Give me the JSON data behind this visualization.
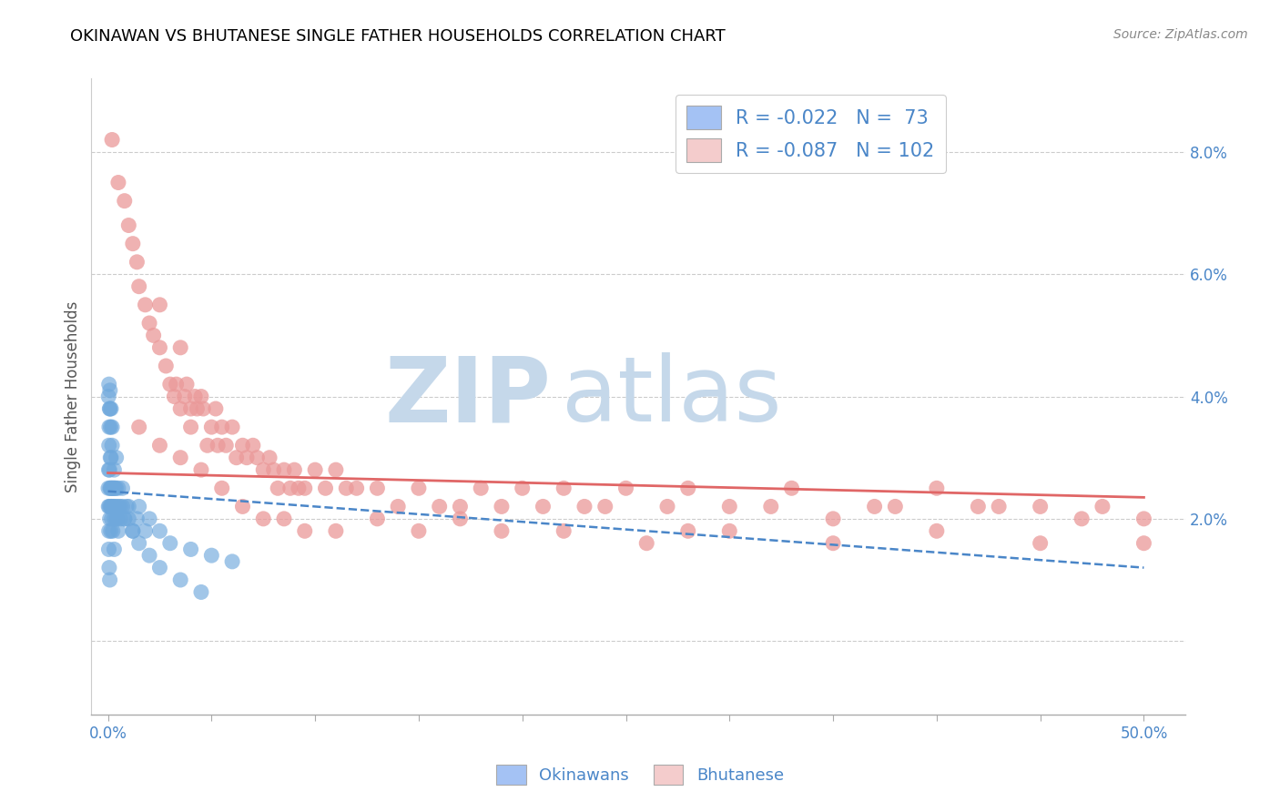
{
  "title": "OKINAWAN VS BHUTANESE SINGLE FATHER HOUSEHOLDS CORRELATION CHART",
  "source": "Source: ZipAtlas.com",
  "ylabel": "Single Father Households",
  "x_tick_positions": [
    0.0,
    0.05,
    0.1,
    0.15,
    0.2,
    0.25,
    0.3,
    0.35,
    0.4,
    0.45,
    0.5
  ],
  "x_tick_labels": [
    "0.0%",
    "",
    "",
    "",
    "",
    "",
    "",
    "",
    "",
    "",
    "50.0%"
  ],
  "y_ticks_right": [
    0.0,
    0.02,
    0.04,
    0.06,
    0.08
  ],
  "y_tick_labels_right": [
    "",
    "2.0%",
    "4.0%",
    "6.0%",
    "8.0%"
  ],
  "xlim": [
    -0.008,
    0.52
  ],
  "ylim": [
    -0.012,
    0.092
  ],
  "blue_color": "#6fa8dc",
  "pink_color": "#ea9999",
  "blue_fill": "#a4c2f4",
  "pink_fill": "#f4cccc",
  "trend_blue_color": "#4a86c8",
  "trend_pink_color": "#e06666",
  "watermark_zip_color": "#c5d8ea",
  "watermark_atlas_color": "#c5d8ea",
  "background_color": "#ffffff",
  "grid_color": "#cccccc",
  "title_color": "#000000",
  "label_color": "#4a86c8",
  "okinawan_x": [
    0.0002,
    0.0003,
    0.0004,
    0.0005,
    0.0005,
    0.0006,
    0.0007,
    0.0008,
    0.0009,
    0.001,
    0.001,
    0.0012,
    0.0012,
    0.0013,
    0.0014,
    0.0015,
    0.0016,
    0.0017,
    0.0018,
    0.002,
    0.002,
    0.0022,
    0.0023,
    0.0025,
    0.0026,
    0.003,
    0.003,
    0.0032,
    0.0035,
    0.004,
    0.004,
    0.0042,
    0.0045,
    0.005,
    0.005,
    0.006,
    0.007,
    0.008,
    0.009,
    0.01,
    0.012,
    0.014,
    0.015,
    0.018,
    0.02,
    0.025,
    0.03,
    0.04,
    0.05,
    0.06,
    0.0003,
    0.0005,
    0.0008,
    0.001,
    0.0013,
    0.0015,
    0.002,
    0.003,
    0.004,
    0.005,
    0.006,
    0.007,
    0.008,
    0.01,
    0.012,
    0.015,
    0.02,
    0.025,
    0.035,
    0.045,
    0.0004,
    0.0006,
    0.0009,
    0.003
  ],
  "okinawan_y": [
    0.025,
    0.022,
    0.028,
    0.032,
    0.018,
    0.035,
    0.022,
    0.028,
    0.02,
    0.038,
    0.025,
    0.03,
    0.022,
    0.025,
    0.018,
    0.03,
    0.022,
    0.025,
    0.02,
    0.035,
    0.022,
    0.025,
    0.018,
    0.025,
    0.022,
    0.025,
    0.02,
    0.022,
    0.025,
    0.025,
    0.02,
    0.022,
    0.02,
    0.022,
    0.018,
    0.02,
    0.022,
    0.02,
    0.022,
    0.02,
    0.018,
    0.02,
    0.022,
    0.018,
    0.02,
    0.018,
    0.016,
    0.015,
    0.014,
    0.013,
    0.04,
    0.042,
    0.038,
    0.041,
    0.035,
    0.038,
    0.032,
    0.028,
    0.03,
    0.025,
    0.022,
    0.025,
    0.02,
    0.022,
    0.018,
    0.016,
    0.014,
    0.012,
    0.01,
    0.008,
    0.015,
    0.012,
    0.01,
    0.015
  ],
  "bhutanese_x": [
    0.002,
    0.005,
    0.008,
    0.01,
    0.012,
    0.014,
    0.015,
    0.018,
    0.02,
    0.022,
    0.025,
    0.025,
    0.028,
    0.03,
    0.032,
    0.033,
    0.035,
    0.035,
    0.037,
    0.038,
    0.04,
    0.04,
    0.042,
    0.043,
    0.045,
    0.046,
    0.048,
    0.05,
    0.052,
    0.053,
    0.055,
    0.057,
    0.06,
    0.062,
    0.065,
    0.067,
    0.07,
    0.072,
    0.075,
    0.078,
    0.08,
    0.082,
    0.085,
    0.088,
    0.09,
    0.092,
    0.095,
    0.1,
    0.105,
    0.11,
    0.115,
    0.12,
    0.13,
    0.14,
    0.15,
    0.16,
    0.17,
    0.18,
    0.19,
    0.2,
    0.21,
    0.22,
    0.23,
    0.24,
    0.25,
    0.27,
    0.28,
    0.3,
    0.32,
    0.33,
    0.35,
    0.37,
    0.38,
    0.4,
    0.42,
    0.43,
    0.45,
    0.47,
    0.48,
    0.5,
    0.015,
    0.025,
    0.035,
    0.045,
    0.055,
    0.065,
    0.075,
    0.085,
    0.095,
    0.11,
    0.13,
    0.15,
    0.17,
    0.19,
    0.22,
    0.26,
    0.3,
    0.35,
    0.4,
    0.45,
    0.5,
    0.28
  ],
  "bhutanese_y": [
    0.082,
    0.075,
    0.072,
    0.068,
    0.065,
    0.062,
    0.058,
    0.055,
    0.052,
    0.05,
    0.055,
    0.048,
    0.045,
    0.042,
    0.04,
    0.042,
    0.048,
    0.038,
    0.04,
    0.042,
    0.038,
    0.035,
    0.04,
    0.038,
    0.04,
    0.038,
    0.032,
    0.035,
    0.038,
    0.032,
    0.035,
    0.032,
    0.035,
    0.03,
    0.032,
    0.03,
    0.032,
    0.03,
    0.028,
    0.03,
    0.028,
    0.025,
    0.028,
    0.025,
    0.028,
    0.025,
    0.025,
    0.028,
    0.025,
    0.028,
    0.025,
    0.025,
    0.025,
    0.022,
    0.025,
    0.022,
    0.022,
    0.025,
    0.022,
    0.025,
    0.022,
    0.025,
    0.022,
    0.022,
    0.025,
    0.022,
    0.025,
    0.022,
    0.022,
    0.025,
    0.02,
    0.022,
    0.022,
    0.025,
    0.022,
    0.022,
    0.022,
    0.02,
    0.022,
    0.02,
    0.035,
    0.032,
    0.03,
    0.028,
    0.025,
    0.022,
    0.02,
    0.02,
    0.018,
    0.018,
    0.02,
    0.018,
    0.02,
    0.018,
    0.018,
    0.016,
    0.018,
    0.016,
    0.018,
    0.016,
    0.016,
    0.018
  ],
  "bh_trend_x0": 0.0,
  "bh_trend_y0": 0.0275,
  "bh_trend_x1": 0.5,
  "bh_trend_y1": 0.0235,
  "ok_trend_x0": 0.0,
  "ok_trend_y0": 0.0245,
  "ok_trend_x1": 0.5,
  "ok_trend_y1": 0.012
}
